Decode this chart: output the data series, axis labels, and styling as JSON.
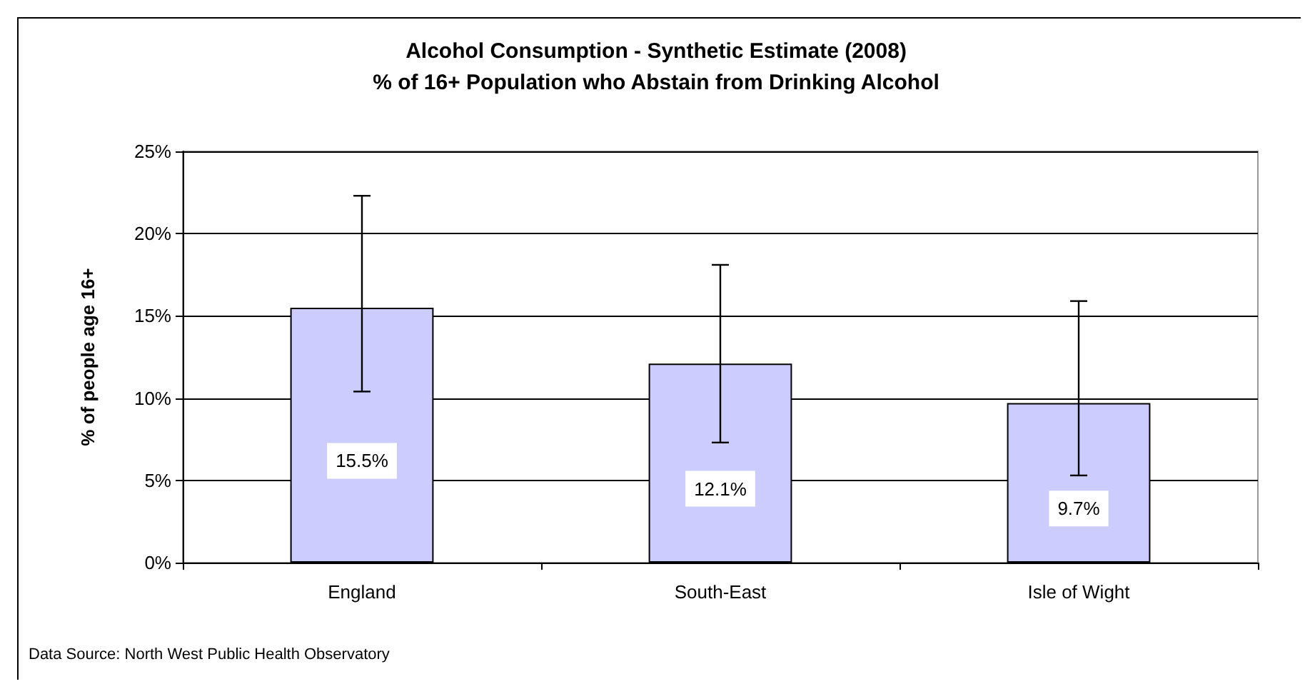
{
  "chart_data": {
    "type": "bar",
    "title": "Alcohol Consumption - Synthetic Estimate (2008)\n% of 16+ Population who Abstain from Drinking Alcohol",
    "ylabel": "% of people age 16+",
    "categories": [
      "England",
      "South-East",
      "Isle of Wight"
    ],
    "values": [
      15.5,
      12.1,
      9.7
    ],
    "color": "#ccccff",
    "errors": [
      [
        10.4,
        22.3
      ],
      [
        7.3,
        18.1
      ],
      [
        5.3,
        15.9
      ]
    ],
    "value_labels": [
      "15.5%",
      "12.1%",
      "9.7%"
    ],
    "ylim": [
      0,
      25
    ],
    "yticks": [
      {
        "value": 0,
        "label": "0%"
      },
      {
        "value": 5,
        "label": "5%"
      },
      {
        "value": 10,
        "label": "10%"
      },
      {
        "value": 15,
        "label": "15%"
      },
      {
        "value": 20,
        "label": "20%"
      },
      {
        "value": 25,
        "label": "25%"
      }
    ],
    "grid": "y",
    "annotations": [
      "Data Source: North West Public Health Observatory"
    ]
  }
}
